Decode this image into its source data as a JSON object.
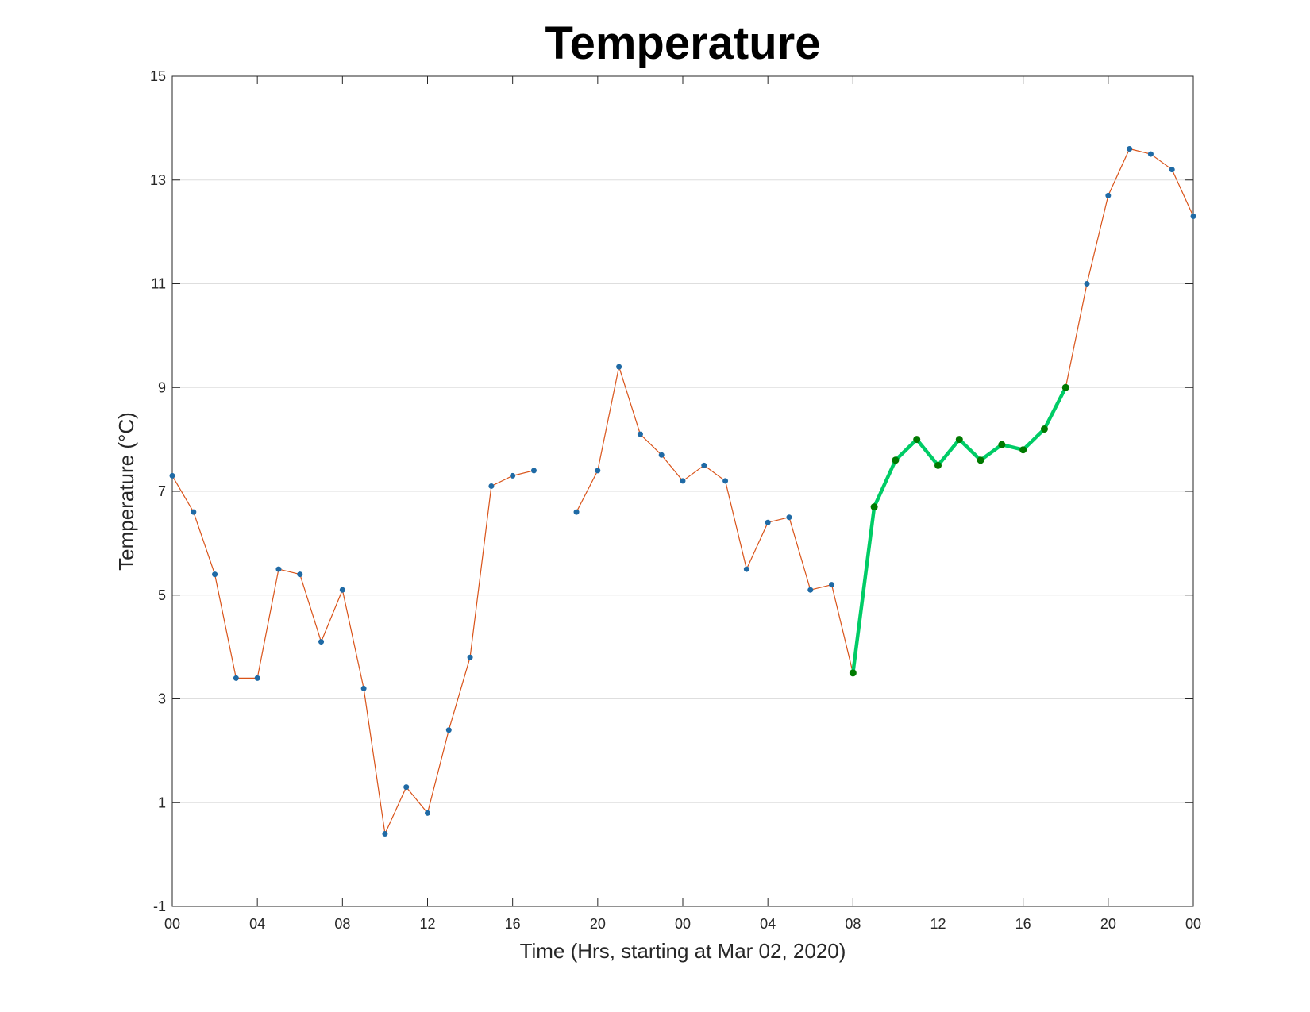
{
  "chart_data": {
    "type": "line",
    "title": "Temperature",
    "xlabel": "Time (Hrs, starting at Mar 02, 2020)",
    "ylabel": "Temperature (°C)",
    "xlim": [
      0,
      48
    ],
    "ylim": [
      -1,
      15
    ],
    "x_ticks": [
      {
        "value": 0,
        "label": "00"
      },
      {
        "value": 4,
        "label": "04"
      },
      {
        "value": 8,
        "label": "08"
      },
      {
        "value": 12,
        "label": "12"
      },
      {
        "value": 16,
        "label": "16"
      },
      {
        "value": 20,
        "label": "20"
      },
      {
        "value": 24,
        "label": "00"
      },
      {
        "value": 28,
        "label": "04"
      },
      {
        "value": 32,
        "label": "08"
      },
      {
        "value": 36,
        "label": "12"
      },
      {
        "value": 40,
        "label": "16"
      },
      {
        "value": 44,
        "label": "20"
      },
      {
        "value": 48,
        "label": "00"
      }
    ],
    "y_ticks": [
      -1,
      1,
      3,
      5,
      7,
      9,
      11,
      13,
      15
    ],
    "grid": "horizontal",
    "series": [
      {
        "color": "#d95319",
        "marker_color": "#1f6aa5",
        "style": "thin-line-with-dots",
        "x": [
          0,
          1,
          2,
          3,
          4,
          5,
          6,
          7,
          8,
          9,
          10,
          11,
          12,
          13,
          14,
          15,
          16,
          17,
          18,
          19,
          20,
          21,
          22,
          23,
          24,
          25,
          26,
          27,
          28,
          29,
          30,
          31,
          32,
          33,
          34,
          35,
          36,
          37,
          38,
          39,
          40,
          41,
          42,
          43,
          44,
          45,
          46,
          47,
          48
        ],
        "y": [
          7.3,
          6.6,
          5.4,
          3.4,
          3.4,
          5.5,
          5.4,
          4.1,
          5.1,
          3.2,
          0.4,
          1.3,
          0.8,
          2.4,
          3.8,
          7.1,
          7.3,
          7.4,
          null,
          6.6,
          7.4,
          9.4,
          8.1,
          7.7,
          7.2,
          7.5,
          7.2,
          5.5,
          6.4,
          6.5,
          5.1,
          5.2,
          3.5,
          6.7,
          7.6,
          8.0,
          7.5,
          8.0,
          7.6,
          7.9,
          7.8,
          8.2,
          9.0,
          11.0,
          12.7,
          13.6,
          13.5,
          13.2,
          12.3
        ]
      },
      {
        "color": "#00cc66",
        "marker_color": "#007a00",
        "style": "thick-line-with-dots",
        "x": [
          32,
          33,
          34,
          35,
          36,
          37,
          38,
          39,
          40,
          41,
          42
        ],
        "y": [
          3.5,
          6.7,
          7.6,
          8.0,
          7.5,
          8.0,
          7.6,
          7.9,
          7.8,
          8.2,
          9.0
        ]
      }
    ]
  }
}
